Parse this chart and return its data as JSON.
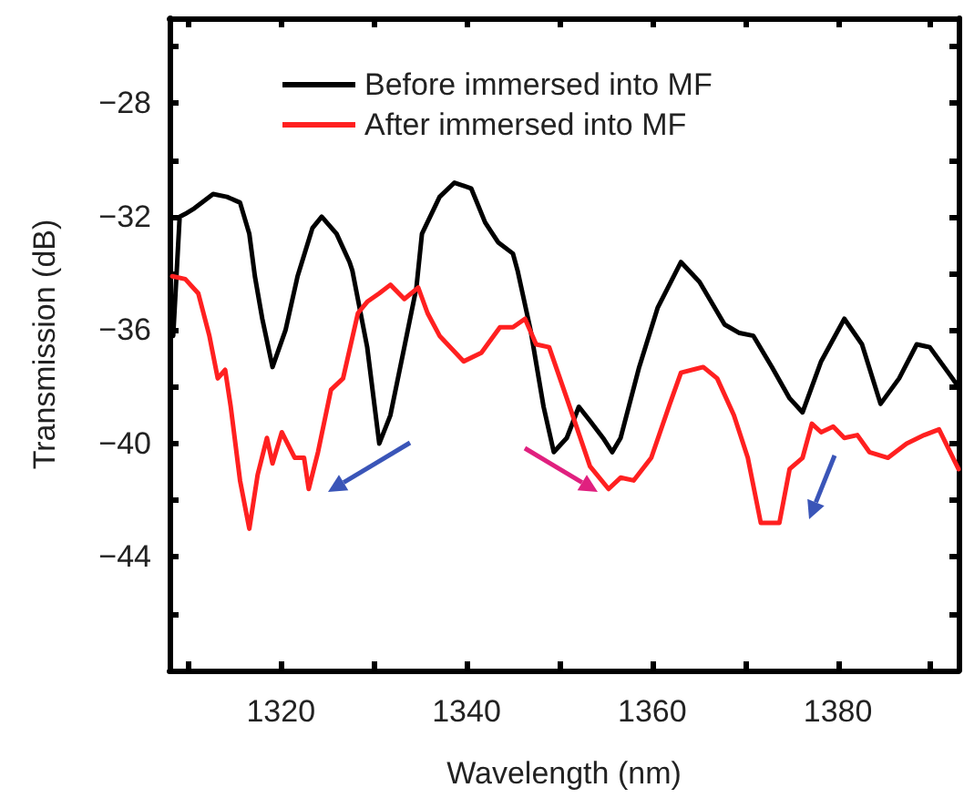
{
  "chart_data": {
    "type": "line",
    "xlabel": "Wavelength (nm)",
    "ylabel": "Transmission (dB)",
    "xlim": [
      1308,
      1393
    ],
    "ylim": [
      -48,
      -25
    ],
    "xticks": [
      {
        "value": 1310,
        "label": null
      },
      1320,
      {
        "value": 1330,
        "label": null
      },
      1340,
      {
        "value": 1350,
        "label": null
      },
      1360,
      {
        "value": 1370,
        "label": null
      },
      1380,
      {
        "value": 1390,
        "label": null
      }
    ],
    "yticks": [
      {
        "value": -46,
        "label": null
      },
      -44,
      {
        "value": -42,
        "label": null
      },
      -40,
      {
        "value": -38,
        "label": null
      },
      -36,
      {
        "value": -34,
        "label": null
      },
      -32,
      {
        "value": -30,
        "label": null
      },
      -28,
      {
        "value": -26,
        "label": null
      }
    ],
    "grid": false,
    "legend": "top left",
    "line_style": "solid",
    "series": [
      {
        "name": "Before immersed into MF",
        "color": "#000000",
        "x": [
          1308.4,
          1309.1,
          1309.7,
          1310.7,
          1312.7,
          1314.2,
          1315.6,
          1316.6,
          1317.2,
          1318.0,
          1319.1,
          1320.5,
          1321.8,
          1323.4,
          1324.4,
          1326.0,
          1327.4,
          1327.7,
          1329.3,
          1330.6,
          1331.8,
          1333.3,
          1334.6,
          1335.2,
          1337.1,
          1338.7,
          1340.5,
          1342.0,
          1343.4,
          1345.0,
          1345.5,
          1346.9,
          1348.3,
          1349.4,
          1350.8,
          1352.1,
          1353.3,
          1354.7,
          1355.7,
          1356.6,
          1358.6,
          1360.6,
          1363.1,
          1365.1,
          1367.8,
          1369.4,
          1370.9,
          1372.9,
          1374.8,
          1376.2,
          1378.2,
          1380.7,
          1382.6,
          1384.6,
          1386.6,
          1388.5,
          1389.9,
          1391.9,
          1393.0
        ],
        "values": [
          -36.2,
          -32.0,
          -31.9,
          -31.7,
          -31.2,
          -31.3,
          -31.5,
          -32.6,
          -34.1,
          -35.6,
          -37.3,
          -36.0,
          -34.1,
          -32.4,
          -32.0,
          -32.6,
          -33.6,
          -33.9,
          -36.6,
          -40.0,
          -39.0,
          -36.6,
          -34.5,
          -32.6,
          -31.3,
          -30.8,
          -31.0,
          -32.2,
          -32.9,
          -33.3,
          -33.9,
          -36.0,
          -38.7,
          -40.3,
          -39.8,
          -38.7,
          -39.2,
          -39.8,
          -40.3,
          -39.8,
          -37.3,
          -35.2,
          -33.6,
          -34.3,
          -35.8,
          -36.1,
          -36.2,
          -37.3,
          -38.4,
          -38.9,
          -37.1,
          -35.6,
          -36.5,
          -38.6,
          -37.7,
          -36.5,
          -36.6,
          -37.5,
          -38.0
        ]
      },
      {
        "name": "After immersed into MF",
        "color": "#ff2020",
        "x": [
          1308.3,
          1309.7,
          1311.1,
          1312.3,
          1313.2,
          1314.0,
          1314.6,
          1315.6,
          1316.6,
          1317.5,
          1318.5,
          1319.1,
          1320.1,
          1321.5,
          1322.5,
          1323.0,
          1324.0,
          1325.4,
          1326.7,
          1328.3,
          1329.3,
          1330.6,
          1331.8,
          1333.3,
          1334.8,
          1335.8,
          1337.1,
          1339.7,
          1341.6,
          1343.6,
          1345.0,
          1346.3,
          1347.5,
          1348.9,
          1350.8,
          1353.3,
          1355.3,
          1356.6,
          1358.0,
          1359.9,
          1361.9,
          1363.1,
          1365.5,
          1367.0,
          1368.8,
          1370.3,
          1371.7,
          1373.7,
          1374.8,
          1376.2,
          1377.2,
          1378.2,
          1379.5,
          1380.7,
          1382.1,
          1383.4,
          1385.4,
          1387.4,
          1389.3,
          1390.9,
          1393.0
        ],
        "values": [
          -34.1,
          -34.2,
          -34.7,
          -36.2,
          -37.7,
          -37.4,
          -38.7,
          -41.3,
          -43.0,
          -41.1,
          -39.8,
          -40.7,
          -39.6,
          -40.5,
          -40.5,
          -41.6,
          -40.3,
          -38.1,
          -37.7,
          -35.4,
          -35.0,
          -34.7,
          -34.4,
          -34.9,
          -34.5,
          -35.4,
          -36.2,
          -37.1,
          -36.8,
          -35.9,
          -35.9,
          -35.6,
          -36.5,
          -36.6,
          -38.4,
          -40.8,
          -41.6,
          -41.2,
          -41.3,
          -40.5,
          -38.6,
          -37.5,
          -37.3,
          -37.7,
          -39.0,
          -40.5,
          -42.8,
          -42.8,
          -40.9,
          -40.5,
          -39.3,
          -39.6,
          -39.4,
          -39.8,
          -39.7,
          -40.3,
          -40.5,
          -40.0,
          -39.7,
          -39.5,
          -40.9
        ]
      }
    ]
  }
}
